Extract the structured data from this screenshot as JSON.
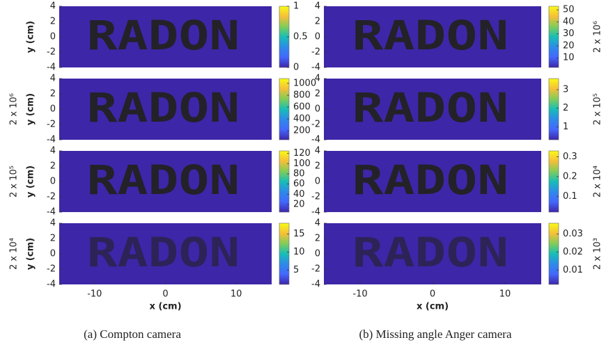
{
  "figure": {
    "xlim": [
      -15,
      15
    ],
    "ylim": [
      -4,
      4
    ],
    "xticks": [
      -10,
      0,
      10
    ],
    "yticks": [
      4,
      2,
      0,
      -2,
      -4
    ],
    "x_label": "x (cm)",
    "y_label": "y (cm)",
    "phantom": "RADON",
    "colormap": [
      "#3e26a8",
      "#4367fd",
      "#2e8ae8",
      "#17beb6",
      "#81cc59",
      "#f5bf39",
      "#f9fb15"
    ],
    "columns": [
      {
        "caption": "(a) Compton camera",
        "count_labels": [
          "2 x 10⁶",
          "2 x 10⁵",
          "2 x 10⁴"
        ],
        "panels": [
          {
            "clim": [
              0,
              1
            ],
            "cticks": [
              0,
              0.5,
              1
            ]
          },
          {
            "clim": [
              50,
              1080
            ],
            "cticks": [
              200,
              400,
              600,
              800,
              1000
            ]
          },
          {
            "clim": [
              5,
              125
            ],
            "cticks": [
              20,
              40,
              60,
              80,
              100,
              120
            ]
          },
          {
            "clim": [
              1,
              18
            ],
            "cticks": [
              5,
              10,
              15
            ]
          }
        ]
      },
      {
        "caption": "(b) Missing angle Anger camera",
        "count_labels": [
          "2 x 10⁶",
          "2 x 10⁵",
          "2 x 10⁴",
          "2 x 10³"
        ],
        "panels": [
          {
            "clim": [
              2,
              53
            ],
            "cticks": [
              10,
              20,
              30,
              40,
              50
            ]
          },
          {
            "clim": [
              0.3,
              3.6
            ],
            "cticks": [
              1,
              2,
              3
            ]
          },
          {
            "clim": [
              0.02,
              0.33
            ],
            "cticks": [
              0.1,
              0.2,
              0.3
            ]
          },
          {
            "clim": [
              0.002,
              0.036
            ],
            "cticks": [
              0.01,
              0.02,
              0.03
            ]
          }
        ]
      }
    ]
  }
}
